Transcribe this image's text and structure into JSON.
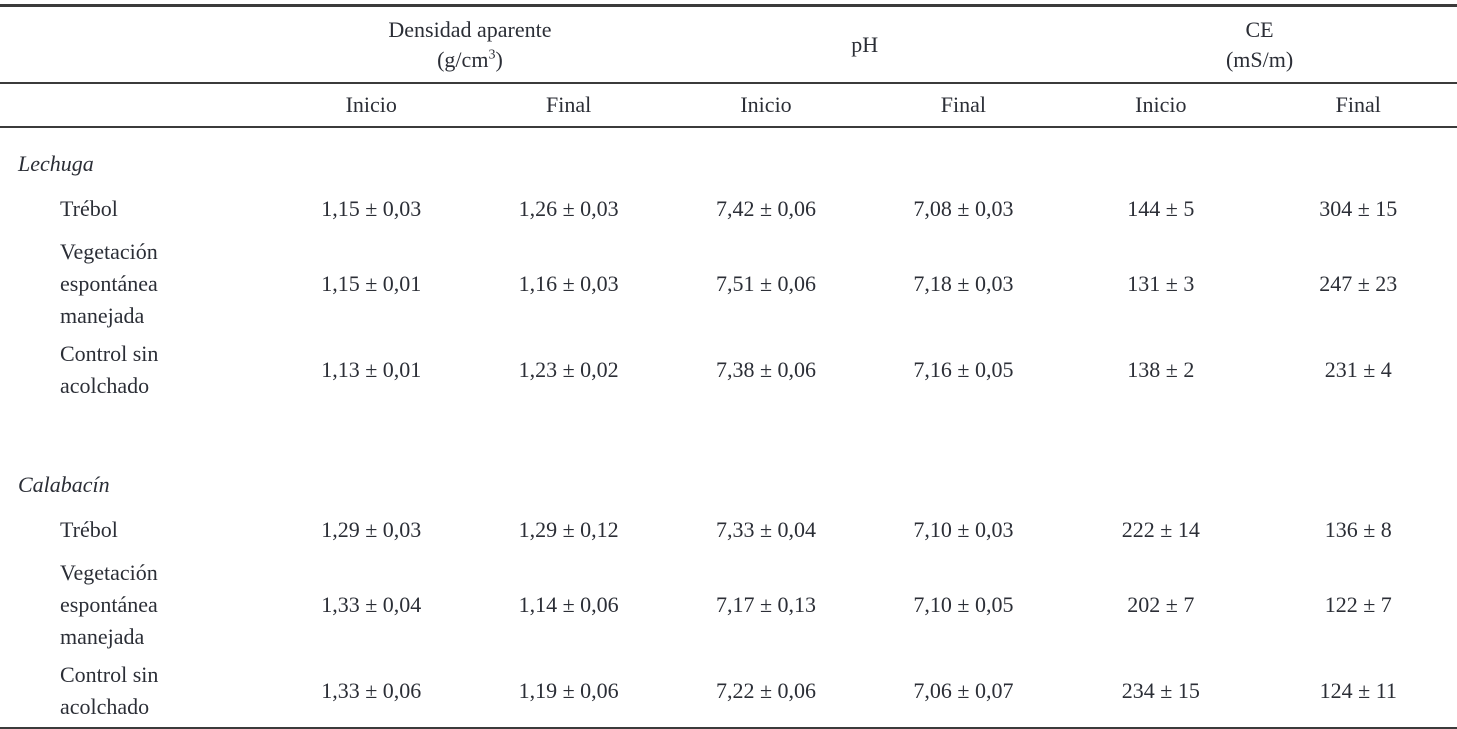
{
  "table": {
    "header": {
      "groups": [
        {
          "title": "Densidad aparente",
          "unit_pre": "(g/cm",
          "unit_sup": "3",
          "unit_post": ")"
        },
        {
          "title": "pH",
          "unit_pre": "",
          "unit_sup": "",
          "unit_post": ""
        },
        {
          "title": "CE",
          "unit_pre": "(mS/m)",
          "unit_sup": "",
          "unit_post": ""
        }
      ],
      "subheaders": [
        "Inicio",
        "Final",
        "Inicio",
        "Final",
        "Inicio",
        "Final"
      ]
    },
    "sections": [
      {
        "crop": "Lechuga",
        "rows": [
          {
            "treatment": "Trébol",
            "values": [
              "1,15 ± 0,03",
              "1,26 ± 0,03",
              "7,42 ± 0,06",
              "7,08 ± 0,03",
              "144 ± 5",
              "304 ± 15"
            ]
          },
          {
            "treatment": "Vegetación espontánea manejada",
            "values": [
              "1,15 ± 0,01",
              "1,16 ± 0,03",
              "7,51 ± 0,06",
              "7,18 ± 0,03",
              "131 ± 3",
              "247 ± 23"
            ]
          },
          {
            "treatment": "Control sin acolchado",
            "values": [
              "1,13 ± 0,01",
              "1,23 ± 0,02",
              "7,38 ± 0,06",
              "7,16 ± 0,05",
              "138 ± 2",
              "231 ± 4"
            ]
          }
        ]
      },
      {
        "crop": "Calabacín",
        "rows": [
          {
            "treatment": "Trébol",
            "values": [
              "1,29 ± 0,03",
              "1,29 ± 0,12",
              "7,33 ± 0,04",
              "7,10 ± 0,03",
              "222 ± 14",
              "136 ± 8"
            ]
          },
          {
            "treatment": "Vegetación espontánea manejada",
            "values": [
              "1,33 ± 0,04",
              "1,14 ± 0,06",
              "7,17 ± 0,13",
              "7,10 ± 0,05",
              "202 ± 7",
              "122 ± 7"
            ]
          },
          {
            "treatment": "Control sin acolchado",
            "values": [
              "1,33 ± 0,06",
              "1,19 ± 0,06",
              "7,22 ± 0,06",
              "7,06 ± 0,07",
              "234 ± 15",
              "124 ± 11"
            ]
          }
        ]
      }
    ],
    "colors": {
      "text": "#2b2e36",
      "rule": "#3b3b3b",
      "background": "#ffffff"
    }
  }
}
